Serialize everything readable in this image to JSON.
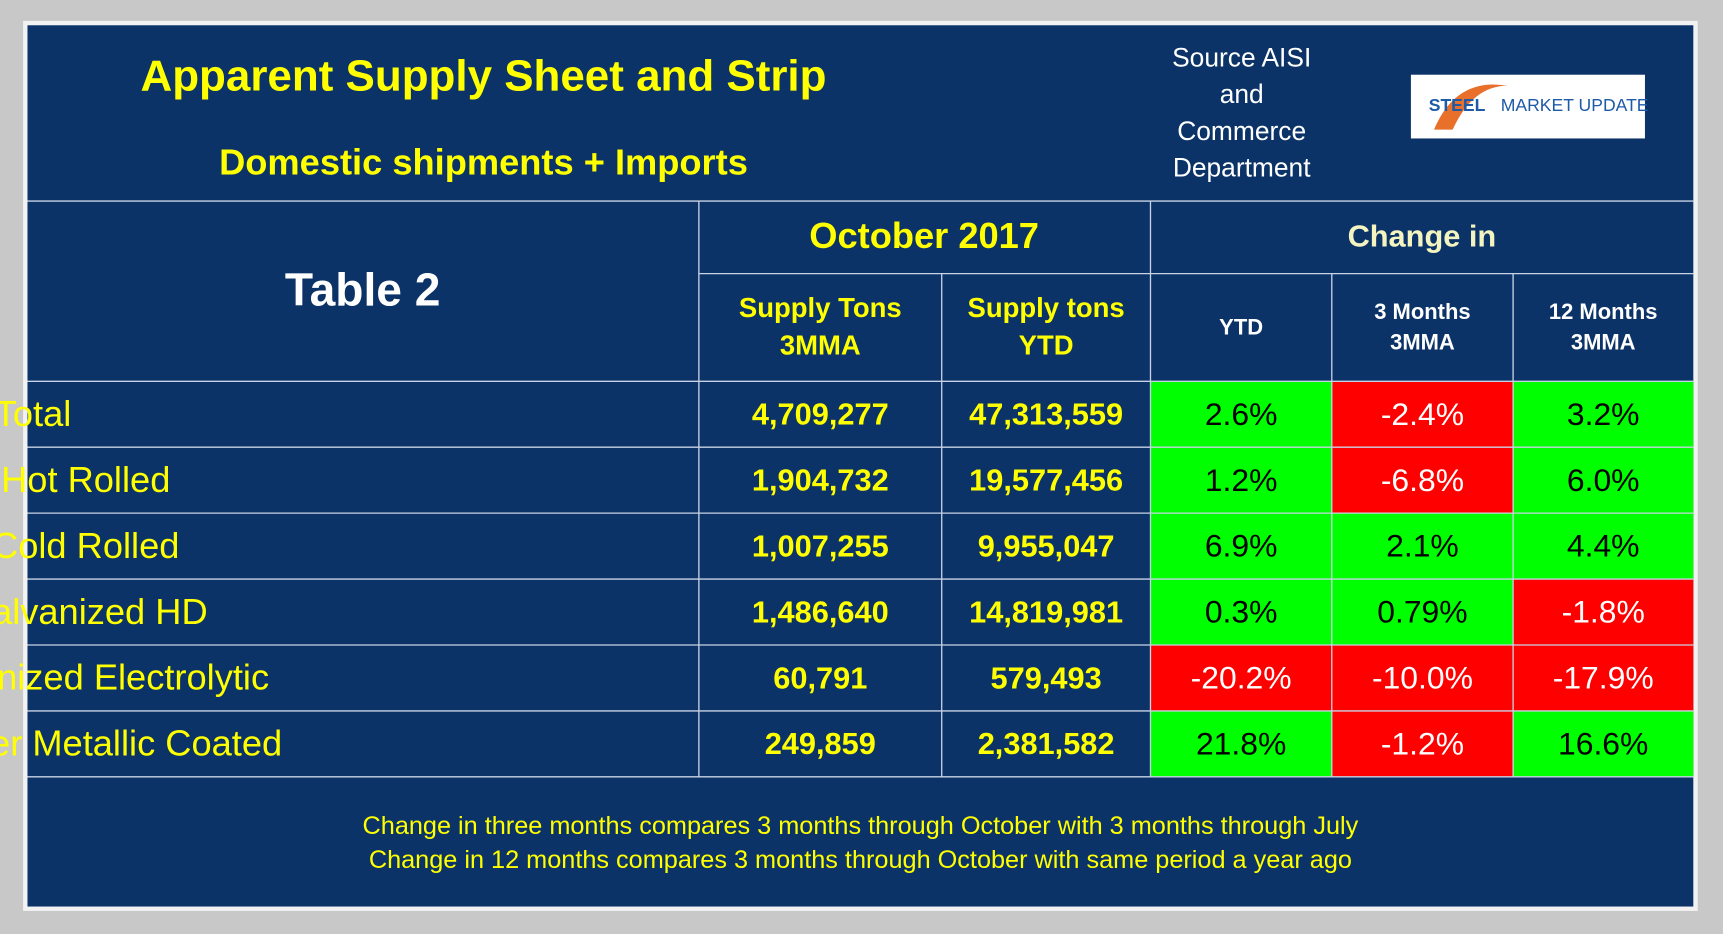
{
  "header": {
    "title": "Apparent Supply Sheet and Strip",
    "subtitle": "Domestic shipments + Imports",
    "source": [
      "Source AISI",
      "and",
      "Commerce",
      "Department"
    ],
    "logo": [
      "STEEL",
      "MARKET UPDATE"
    ]
  },
  "table": {
    "title": "Table 2",
    "group_headers": [
      "October 2017",
      "Change in"
    ],
    "columns": [
      [
        "Supply Tons",
        "3MMA"
      ],
      [
        "Supply tons",
        "YTD"
      ],
      [
        "YTD"
      ],
      [
        "3 Months",
        "3MMA"
      ],
      [
        "12 Months",
        "3MMA"
      ]
    ],
    "rows": [
      {
        "label": "Total",
        "cells": [
          "4,709,277",
          "47,313,559",
          "2.6%",
          "-2.4%",
          "3.2%"
        ],
        "colors": [
          "green",
          "red",
          "green"
        ]
      },
      {
        "label": "Hot Rolled",
        "cells": [
          "1,904,732",
          "19,577,456",
          "1.2%",
          "-6.8%",
          "6.0%"
        ],
        "colors": [
          "green",
          "red",
          "green"
        ]
      },
      {
        "label": "Cold Rolled",
        "cells": [
          "1,007,255",
          "9,955,047",
          "6.9%",
          "2.1%",
          "4.4%"
        ],
        "colors": [
          "green",
          "green",
          "green"
        ]
      },
      {
        "label": "Galvanized HD",
        "cells": [
          "1,486,640",
          "14,819,981",
          "0.3%",
          "0.79%",
          "-1.8%"
        ],
        "colors": [
          "green",
          "green",
          "red"
        ]
      },
      {
        "label": "Galvanized Electrolytic",
        "cells": [
          "60,791",
          "579,493",
          "-20.2%",
          "-10.0%",
          "-17.9%"
        ],
        "colors": [
          "red",
          "red",
          "red"
        ]
      },
      {
        "label": "All other Metallic Coated",
        "cells": [
          "249,859",
          "2,381,582",
          "21.8%",
          "-1.2%",
          "16.6%"
        ],
        "colors": [
          "green",
          "red",
          "green"
        ]
      }
    ]
  },
  "footnotes": [
    "Change in three months compares 3 months through October with 3 months through July",
    "Change in 12 months compares 3 months through October with same period a year ago"
  ]
}
